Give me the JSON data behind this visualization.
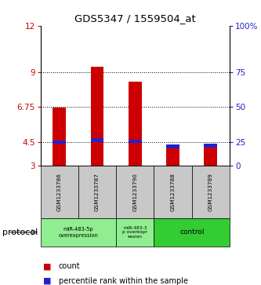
{
  "title": "GDS5347 / 1559504_at",
  "samples": [
    "GSM1233786",
    "GSM1233787",
    "GSM1233790",
    "GSM1233788",
    "GSM1233789"
  ],
  "red_values": [
    6.7,
    9.35,
    8.4,
    4.35,
    4.35
  ],
  "blue_values": [
    4.5,
    4.62,
    4.55,
    4.22,
    4.27
  ],
  "y_min": 3,
  "y_max": 12,
  "y_ticks": [
    3,
    4.5,
    6.75,
    9,
    12
  ],
  "y_tick_labels": [
    "3",
    "4.5",
    "6.75",
    "9",
    "12"
  ],
  "right_y_ticks": [
    3,
    4.5,
    6.75,
    9,
    12
  ],
  "right_y_labels": [
    "0",
    "25",
    "50",
    "75",
    "100%"
  ],
  "hlines": [
    4.5,
    6.75,
    9
  ],
  "bar_width": 0.35,
  "red_color": "#CC0000",
  "blue_color": "#2222CC",
  "blue_bar_height": 0.22,
  "left_tick_color": "#CC0000",
  "right_tick_color": "#2222CC",
  "bg_plot": "#FFFFFF",
  "bg_sample_row": "#C8C8C8",
  "bg_group_light": "#90EE90",
  "bg_group_dark": "#33CC33",
  "group1_label_line1": "miR-483-5p",
  "group1_label_line2": "overexpression",
  "group2_label_line1": "miR-483-3",
  "group2_label_line2": "p overexpr",
  "group2_label_line3": "ession",
  "group3_label": "control",
  "protocol_label": "protocol",
  "legend_count": "count",
  "legend_pct": "percentile rank within the sample"
}
